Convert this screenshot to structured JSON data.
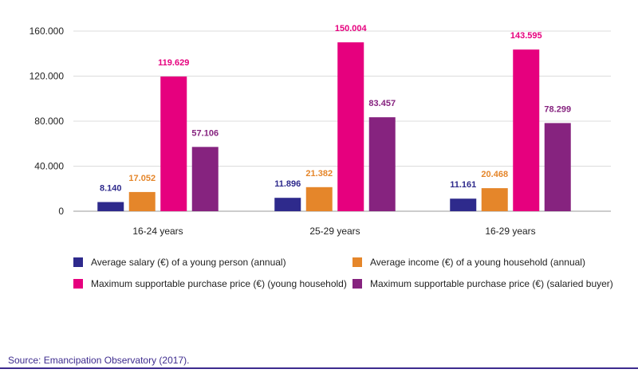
{
  "chart_data": {
    "type": "bar",
    "categories": [
      "16-24 years",
      "25-29 years",
      "16-29 years"
    ],
    "series": [
      {
        "name": "Average salary (€) of a young person (annual)",
        "color": "#2e2a8c",
        "values": [
          8140,
          11896,
          11161
        ],
        "labels": [
          "8.140",
          "11.896",
          "11.161"
        ]
      },
      {
        "name": "Average income (€) of a young household (annual)",
        "color": "#e5862a",
        "values": [
          17052,
          21382,
          20468
        ],
        "labels": [
          "17.052",
          "21.382",
          "20.468"
        ]
      },
      {
        "name": "Maximum supportable purchase price (€) (young household)",
        "color": "#e6007e",
        "values": [
          119629,
          150004,
          143595
        ],
        "labels": [
          "119.629",
          "150.004",
          "143.595"
        ]
      },
      {
        "name": "Maximum supportable purchase price (€) (salaried buyer)",
        "color": "#86237f",
        "values": [
          57106,
          83457,
          78299
        ],
        "labels": [
          "57.106",
          "83.457",
          "78.299"
        ]
      }
    ],
    "yticks": [
      0,
      40000,
      80000,
      120000,
      160000
    ],
    "ytick_labels": [
      "0",
      "40.000",
      "80.000",
      "120.000",
      "160.000"
    ],
    "ylim": [
      0,
      160000
    ],
    "grid": true,
    "legend_position": "bottom"
  },
  "source": "Source: Emancipation Observatory (2017)."
}
